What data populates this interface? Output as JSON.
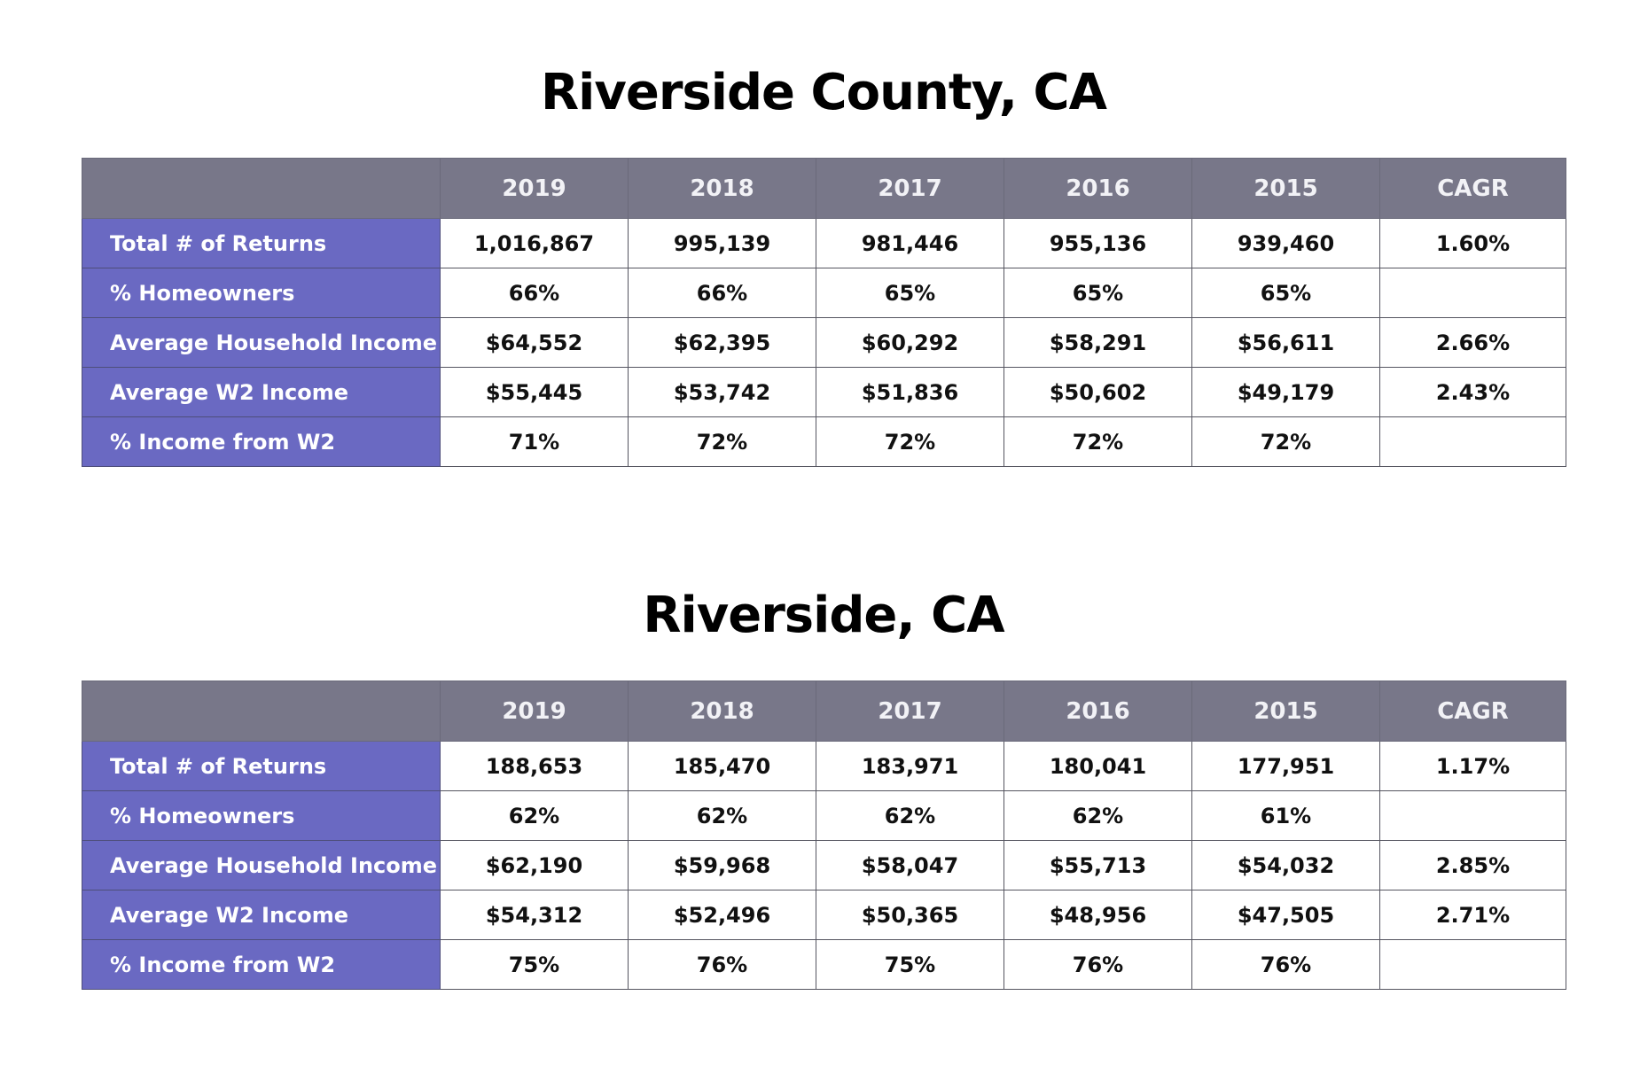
{
  "tables": [
    {
      "title": "Riverside County, CA",
      "headers": [
        "",
        "2019",
        "2018",
        "2017",
        "2016",
        "2015",
        "CAGR"
      ],
      "rows": [
        {
          "label": "Total # of Returns",
          "cells": [
            "1,016,867",
            "995,139",
            "981,446",
            "955,136",
            "939,460",
            "1.60%"
          ]
        },
        {
          "label": "% Homeowners",
          "cells": [
            "66%",
            "66%",
            "65%",
            "65%",
            "65%",
            ""
          ]
        },
        {
          "label": "Average Household Income",
          "cells": [
            "$64,552",
            "$62,395",
            "$60,292",
            "$58,291",
            "$56,611",
            "2.66%"
          ]
        },
        {
          "label": "Average W2 Income",
          "cells": [
            "$55,445",
            "$53,742",
            "$51,836",
            "$50,602",
            "$49,179",
            "2.43%"
          ]
        },
        {
          "label": "% Income from W2",
          "cells": [
            "71%",
            "72%",
            "72%",
            "72%",
            "72%",
            ""
          ]
        }
      ]
    },
    {
      "title": "Riverside, CA",
      "headers": [
        "",
        "2019",
        "2018",
        "2017",
        "2016",
        "2015",
        "CAGR"
      ],
      "rows": [
        {
          "label": "Total # of Returns",
          "cells": [
            "188,653",
            "185,470",
            "183,971",
            "180,041",
            "177,951",
            "1.17%"
          ]
        },
        {
          "label": "% Homeowners",
          "cells": [
            "62%",
            "62%",
            "62%",
            "62%",
            "61%",
            ""
          ]
        },
        {
          "label": "Average Household Income",
          "cells": [
            "$62,190",
            "$59,968",
            "$58,047",
            "$55,713",
            "$54,032",
            "2.85%"
          ]
        },
        {
          "label": "Average W2 Income",
          "cells": [
            "$54,312",
            "$52,496",
            "$50,365",
            "$48,956",
            "$47,505",
            "2.71%"
          ]
        },
        {
          "label": "% Income from W2",
          "cells": [
            "75%",
            "76%",
            "75%",
            "76%",
            "76%",
            ""
          ]
        }
      ]
    }
  ],
  "colors": {
    "header_background": "#787789",
    "row_label_background": "#6a69c2",
    "cell_background": "#ffffff",
    "title_text": "#000000"
  }
}
